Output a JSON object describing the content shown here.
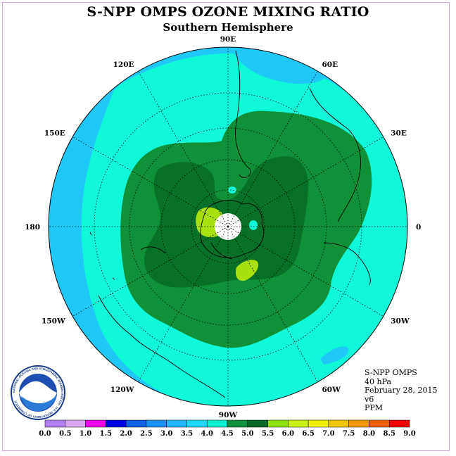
{
  "title": "S-NPP OMPS OZONE MIXING RATIO",
  "subtitle": "Southern Hemisphere",
  "info": {
    "instrument": "S-NPP OMPS",
    "level": "40 hPa",
    "date": "February 28, 2015",
    "version": "v6",
    "units": "PPM"
  },
  "logo": {
    "text": "NOAA",
    "ring_text": "NATIONAL OCEANIC AND ATMOSPHERIC ADMINISTRATION · U.S. DEPARTMENT OF COMMERCE"
  },
  "longitude_labels": [
    {
      "label": "90W",
      "lon": -90
    },
    {
      "label": "60W",
      "lon": -60
    },
    {
      "label": "30W",
      "lon": -30
    },
    {
      "label": "0",
      "lon": 0
    },
    {
      "label": "30E",
      "lon": 30
    },
    {
      "label": "60E",
      "lon": 60
    },
    {
      "label": "90E",
      "lon": 90
    },
    {
      "label": "120E",
      "lon": 120
    },
    {
      "label": "150E",
      "lon": 150
    },
    {
      "label": "180",
      "lon": 180
    },
    {
      "label": "150W",
      "lon": -150
    },
    {
      "label": "120W",
      "lon": -120
    }
  ],
  "colorbar": {
    "ticks": [
      "0.0",
      "0.5",
      "1.0",
      "1.5",
      "2.0",
      "2.5",
      "3.0",
      "3.5",
      "4.0",
      "4.5",
      "5.0",
      "5.5",
      "6.0",
      "6.5",
      "7.0",
      "7.5",
      "8.0",
      "8.5",
      "9.0"
    ],
    "colors": [
      "#b07ff0",
      "#d7a6f0",
      "#f000f0",
      "#0000e6",
      "#1060e6",
      "#1a90f0",
      "#20b8f8",
      "#20d8f8",
      "#10f0d0",
      "#109040",
      "#086828",
      "#90e010",
      "#c8f010",
      "#f0f000",
      "#f0c800",
      "#f09800",
      "#f06000",
      "#f00000",
      "#906040"
    ]
  },
  "contours": {
    "band_3_0_to_3_5": "#20c8f8",
    "band_3_5_to_4_0": "#10f8d8",
    "band_4_0_to_4_5": "#109038",
    "band_4_5_to_5_0": "#087028",
    "band_5_5_to_6_0": "#a8e010",
    "pole_mask": "#ffffff"
  }
}
